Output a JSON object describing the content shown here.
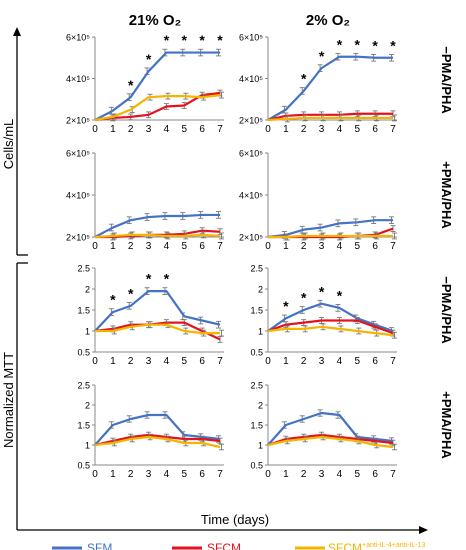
{
  "figure": {
    "col_titles": [
      "21% O₂",
      "2% O₂"
    ],
    "row_titles": [
      "−PMA/PHA",
      "+PMA/PHA",
      "−PMA/PHA",
      "+PMA/PHA"
    ],
    "ylabel_top": "Cells/mL",
    "ylabel_bottom": "Normalized MTT",
    "xlabel": "Time (days)",
    "legend": [
      {
        "name": "SFM",
        "color": "#4472C4"
      },
      {
        "name": "SFCM",
        "color": "#E8101C"
      },
      {
        "name": "SFCM",
        "sup": "+anti-IL-4+anti-IL-13",
        "color": "#F5B400"
      }
    ]
  },
  "chart_data": [
    {
      "type": "line",
      "panel": "cells-21-minus",
      "x": [
        0,
        1,
        2,
        3,
        4,
        5,
        6,
        7
      ],
      "ylim": [
        200000,
        600000
      ],
      "yticks": [
        {
          "v": 200000,
          "label": "2×10⁵"
        },
        {
          "v": 400000,
          "label": "4×10⁵"
        },
        {
          "v": 600000,
          "label": "6×10⁵"
        }
      ],
      "series": [
        {
          "name": "SFM",
          "values": [
            200000,
            245000,
            310000,
            435000,
            525000,
            525000,
            525000,
            525000
          ]
        },
        {
          "name": "SFCM",
          "values": [
            200000,
            210000,
            215000,
            225000,
            265000,
            270000,
            320000,
            330000
          ]
        },
        {
          "name": "SFCM+anti-IL-4+anti-IL-13",
          "values": [
            200000,
            215000,
            250000,
            310000,
            315000,
            315000,
            310000,
            320000
          ]
        }
      ],
      "asterisks": [
        2,
        3,
        4,
        5,
        6,
        7
      ]
    },
    {
      "type": "line",
      "panel": "cells-2-minus",
      "x": [
        0,
        1,
        2,
        3,
        4,
        5,
        6,
        7
      ],
      "ylim": [
        200000,
        600000
      ],
      "yticks": [
        {
          "v": 200000,
          "label": "2×10⁵"
        },
        {
          "v": 400000,
          "label": "4×10⁵"
        },
        {
          "v": 600000,
          "label": "6×10⁵"
        }
      ],
      "series": [
        {
          "name": "SFM",
          "values": [
            200000,
            250000,
            340000,
            450000,
            505000,
            505000,
            500000,
            500000
          ]
        },
        {
          "name": "SFCM",
          "values": [
            200000,
            220000,
            225000,
            225000,
            225000,
            230000,
            230000,
            230000
          ]
        },
        {
          "name": "SFCM+anti-IL-4+anti-IL-13",
          "values": [
            200000,
            205000,
            210000,
            210000,
            210000,
            210000,
            210000,
            210000
          ]
        }
      ],
      "asterisks": [
        2,
        3,
        4,
        5,
        6,
        7
      ]
    },
    {
      "type": "line",
      "panel": "cells-21-plus",
      "x": [
        0,
        1,
        2,
        3,
        4,
        5,
        6,
        7
      ],
      "ylim": [
        200000,
        600000
      ],
      "yticks": [
        {
          "v": 200000,
          "label": "2×10⁵"
        },
        {
          "v": 400000,
          "label": "4×10⁵"
        },
        {
          "v": 600000,
          "label": "6×10⁵"
        }
      ],
      "series": [
        {
          "name": "SFM",
          "values": [
            200000,
            245000,
            280000,
            295000,
            300000,
            300000,
            305000,
            305000
          ]
        },
        {
          "name": "SFCM",
          "values": [
            200000,
            200000,
            205000,
            210000,
            210000,
            215000,
            230000,
            225000
          ]
        },
        {
          "name": "SFCM+anti-IL-4+anti-IL-13",
          "values": [
            200000,
            205000,
            210000,
            210000,
            205000,
            205000,
            210000,
            205000
          ]
        }
      ],
      "asterisks": []
    },
    {
      "type": "line",
      "panel": "cells-2-plus",
      "x": [
        0,
        1,
        2,
        3,
        4,
        5,
        6,
        7
      ],
      "ylim": [
        200000,
        600000
      ],
      "yticks": [
        {
          "v": 200000,
          "label": "2×10⁵"
        },
        {
          "v": 400000,
          "label": "4×10⁵"
        },
        {
          "v": 600000,
          "label": "6×10⁵"
        }
      ],
      "series": [
        {
          "name": "SFM",
          "values": [
            200000,
            210000,
            235000,
            245000,
            265000,
            270000,
            280000,
            280000
          ]
        },
        {
          "name": "SFCM",
          "values": [
            200000,
            200000,
            200000,
            200000,
            200000,
            205000,
            210000,
            240000
          ]
        },
        {
          "name": "SFCM+anti-IL-4+anti-IL-13",
          "values": [
            200000,
            200000,
            205000,
            205000,
            205000,
            205000,
            205000,
            205000
          ]
        }
      ],
      "asterisks": []
    },
    {
      "type": "line",
      "panel": "mtt-21-minus",
      "x": [
        0,
        1,
        2,
        3,
        4,
        5,
        6,
        7
      ],
      "ylim": [
        0.5,
        2.5
      ],
      "yticks": [
        {
          "v": 0.5,
          "label": "0.5"
        },
        {
          "v": 1,
          "label": "1"
        },
        {
          "v": 1.5,
          "label": "1.5"
        },
        {
          "v": 2,
          "label": "2"
        },
        {
          "v": 2.5,
          "label": "2.5"
        }
      ],
      "series": [
        {
          "name": "SFM",
          "values": [
            1,
            1.45,
            1.6,
            1.95,
            1.95,
            1.35,
            1.25,
            1.15
          ]
        },
        {
          "name": "SFCM",
          "values": [
            1,
            1.05,
            1.15,
            1.15,
            1.2,
            1.2,
            1.0,
            0.8
          ]
        },
        {
          "name": "SFCM+anti-IL-4+anti-IL-13",
          "values": [
            1,
            1.0,
            1.1,
            1.15,
            1.15,
            1.0,
            0.95,
            0.95
          ]
        }
      ],
      "asterisks": [
        1,
        2,
        3,
        4
      ]
    },
    {
      "type": "line",
      "panel": "mtt-2-minus",
      "x": [
        0,
        1,
        2,
        3,
        4,
        5,
        6,
        7
      ],
      "ylim": [
        0.5,
        2.5
      ],
      "yticks": [
        {
          "v": 0.5,
          "label": "0.5"
        },
        {
          "v": 1,
          "label": "1"
        },
        {
          "v": 1.5,
          "label": "1.5"
        },
        {
          "v": 2,
          "label": "2"
        },
        {
          "v": 2.5,
          "label": "2.5"
        }
      ],
      "series": [
        {
          "name": "SFM",
          "values": [
            1,
            1.3,
            1.5,
            1.65,
            1.55,
            1.3,
            1.15,
            1.0
          ]
        },
        {
          "name": "SFCM",
          "values": [
            1,
            1.15,
            1.2,
            1.25,
            1.25,
            1.25,
            1.1,
            0.95
          ]
        },
        {
          "name": "SFCM+anti-IL-4+anti-IL-13",
          "values": [
            1,
            1.05,
            1.05,
            1.1,
            1.05,
            1.0,
            0.95,
            0.9
          ]
        }
      ],
      "asterisks": [
        1,
        2,
        3,
        4
      ]
    },
    {
      "type": "line",
      "panel": "mtt-21-plus",
      "x": [
        0,
        1,
        2,
        3,
        4,
        5,
        6,
        7
      ],
      "ylim": [
        0.5,
        2.5
      ],
      "yticks": [
        {
          "v": 0.5,
          "label": "0.5"
        },
        {
          "v": 1,
          "label": "1"
        },
        {
          "v": 1.5,
          "label": "1.5"
        },
        {
          "v": 2,
          "label": "2"
        },
        {
          "v": 2.5,
          "label": "2.5"
        }
      ],
      "series": [
        {
          "name": "SFM",
          "values": [
            1,
            1.5,
            1.65,
            1.75,
            1.75,
            1.25,
            1.2,
            1.15
          ]
        },
        {
          "name": "SFCM",
          "values": [
            1,
            1.1,
            1.2,
            1.25,
            1.2,
            1.15,
            1.15,
            1.1
          ]
        },
        {
          "name": "SFCM+anti-IL-4+anti-IL-13",
          "values": [
            1,
            1.05,
            1.15,
            1.2,
            1.15,
            1.05,
            1.05,
            0.95
          ]
        }
      ],
      "asterisks": []
    },
    {
      "type": "line",
      "panel": "mtt-2-plus",
      "x": [
        0,
        1,
        2,
        3,
        4,
        5,
        6,
        7
      ],
      "ylim": [
        0.5,
        2.5
      ],
      "yticks": [
        {
          "v": 0.5,
          "label": "0.5"
        },
        {
          "v": 1,
          "label": "1"
        },
        {
          "v": 1.5,
          "label": "1.5"
        },
        {
          "v": 2,
          "label": "2"
        },
        {
          "v": 2.5,
          "label": "2.5"
        }
      ],
      "series": [
        {
          "name": "SFM",
          "values": [
            1,
            1.5,
            1.65,
            1.8,
            1.75,
            1.2,
            1.15,
            1.1
          ]
        },
        {
          "name": "SFCM",
          "values": [
            1,
            1.15,
            1.2,
            1.25,
            1.2,
            1.15,
            1.1,
            1.05
          ]
        },
        {
          "name": "SFCM+anti-IL-4+anti-IL-13",
          "values": [
            1,
            1.1,
            1.15,
            1.2,
            1.15,
            1.1,
            1.0,
            0.95
          ]
        }
      ],
      "asterisks": []
    }
  ]
}
